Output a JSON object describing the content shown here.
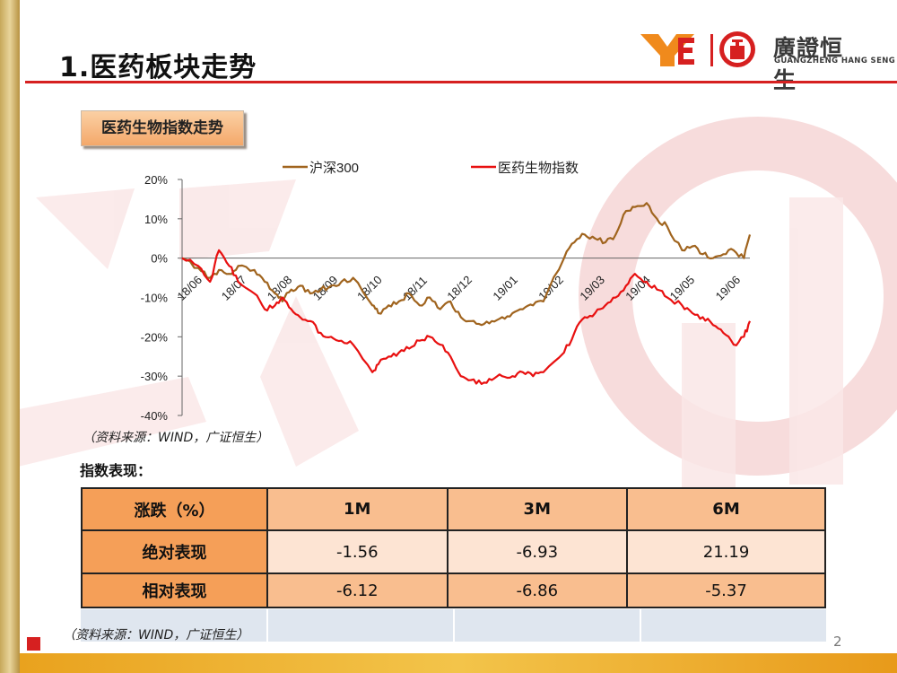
{
  "slide": {
    "title": "1.医药板块走势",
    "logo_cn": "廣證恒生",
    "logo_en": "GUANGZHENG HANG SENG",
    "label": "医药生物指数走势",
    "source_note_1": "（资料来源：WIND，广证恒生）",
    "source_note_2": "（资料来源：WIND，广证恒生）",
    "page_number": "2",
    "colors": {
      "title_rule": "#d62020",
      "logo_red": "#d62020",
      "logo_orange": "#f08a1c",
      "csi300": "#a0641e",
      "pharma": "#e81010"
    }
  },
  "chart_data": {
    "type": "line",
    "x": [
      "2018-06-01",
      "2018-06-12",
      "2018-06-20",
      "2018-06-26",
      "2018-07-03",
      "2018-07-09",
      "2018-07-20",
      "2018-07-27",
      "2018-08-03",
      "2018-08-08",
      "2018-08-14",
      "2018-08-20",
      "2018-08-27",
      "2018-09-03",
      "2018-09-10",
      "2018-09-17",
      "2018-09-25",
      "2018-10-08",
      "2018-10-12",
      "2018-10-19",
      "2018-10-26",
      "2018-11-02",
      "2018-11-09",
      "2018-11-16",
      "2018-11-23",
      "2018-11-30",
      "2018-12-07",
      "2018-12-14",
      "2018-12-21",
      "2018-12-28",
      "2019-01-04",
      "2019-01-11",
      "2019-01-18",
      "2019-01-25",
      "2019-02-01",
      "2019-02-15",
      "2019-02-22",
      "2019-03-01",
      "2019-03-08",
      "2019-03-15",
      "2019-03-22",
      "2019-03-29",
      "2019-04-04",
      "2019-04-12",
      "2019-04-19",
      "2019-04-26",
      "2019-05-06",
      "2019-05-13",
      "2019-05-20",
      "2019-05-27",
      "2019-06-03",
      "2019-06-10",
      "2019-06-17",
      "2019-06-21"
    ],
    "series": [
      {
        "name": "沪深300",
        "values": [
          0,
          -2.5,
          -5,
          -3,
          -4,
          -2,
          -3,
          -6,
          -9,
          -11,
          -8,
          -7,
          -9,
          -8,
          -7,
          -6,
          -5,
          -12,
          -14,
          -12,
          -11,
          -9,
          -12,
          -10,
          -13,
          -11,
          -15,
          -16,
          -17,
          -16,
          -15,
          -14,
          -13,
          -12,
          -11,
          0,
          4,
          6,
          5,
          4,
          6,
          12,
          13,
          14,
          10,
          8,
          2,
          3,
          1,
          0,
          1,
          2,
          0,
          6
        ]
      },
      {
        "name": "医药生物指数",
        "values": [
          0,
          -2,
          -6,
          2,
          -2,
          -6,
          -9,
          -13,
          -12,
          -10,
          -13,
          -15,
          -16,
          -19,
          -20,
          -21,
          -22,
          -29,
          -27,
          -25,
          -24,
          -23,
          -21,
          -20,
          -22,
          -25,
          -30,
          -31,
          -32,
          -31,
          -30,
          -30,
          -29,
          -30,
          -29,
          -24,
          -19,
          -15,
          -14,
          -12,
          -10,
          -7,
          -4,
          -6,
          -8,
          -10,
          -12,
          -14,
          -15,
          -17,
          -19,
          -22,
          -20,
          -16
        ]
      }
    ],
    "x_tick_labels": [
      "18/06",
      "18/07",
      "18/08",
      "18/09",
      "18/10",
      "18/11",
      "18/12",
      "19/01",
      "19/02",
      "19/03",
      "19/04",
      "19/05",
      "19/06"
    ],
    "y_ticks": [
      "20%",
      "10%",
      "0%",
      "-10%",
      "-20%",
      "-30%",
      "-40%"
    ],
    "ylim": [
      -40,
      20
    ],
    "legend": "top"
  },
  "performance_table": {
    "title": "指数表现：",
    "headers": [
      "涨跌（%）",
      "1M",
      "3M",
      "6M"
    ],
    "rows": [
      {
        "label": "绝对表现",
        "values": [
          "-1.56",
          "-6.93",
          "21.19"
        ]
      },
      {
        "label": "相对表现",
        "values": [
          "-6.12",
          "-6.86",
          "-5.37"
        ]
      }
    ]
  }
}
